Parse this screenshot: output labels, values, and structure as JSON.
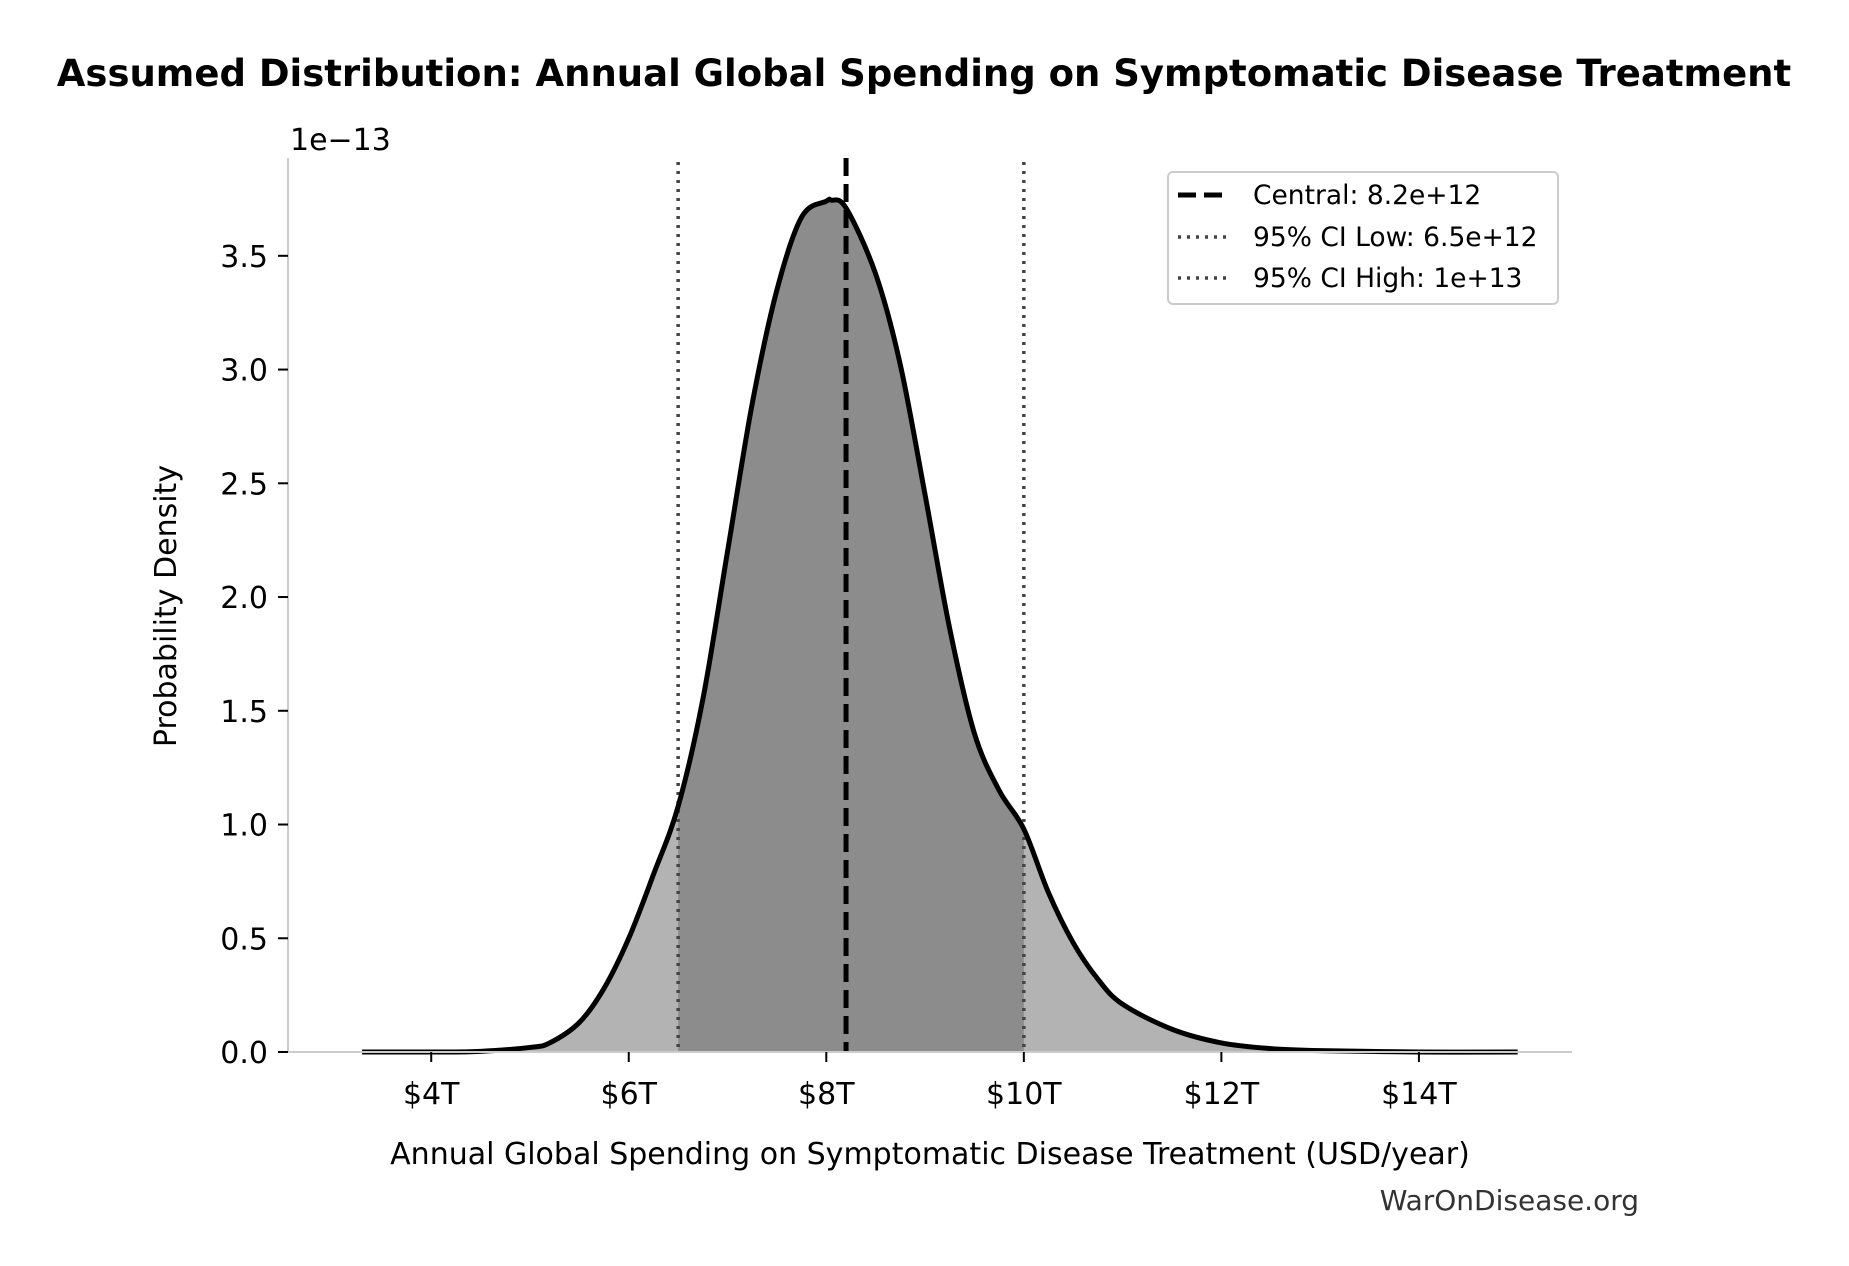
{
  "chart_data": {
    "type": "area",
    "title": "Assumed Distribution: Annual Global Spending on Symptomatic Disease Treatment",
    "xlabel": "Annual Global Spending on Symptomatic Disease Treatment (USD/year)",
    "ylabel": "Probability Density",
    "y_offset_label": "1e−13",
    "watermark": "WarOnDisease.org",
    "xlim": [
      2550000000000.0,
      15550000000000.0
    ],
    "ylim": [
      0,
      3.93
    ],
    "x_ticks": [
      {
        "value": 4000000000000.0,
        "label": "$4T"
      },
      {
        "value": 6000000000000.0,
        "label": "$6T"
      },
      {
        "value": 8000000000000.0,
        "label": "$8T"
      },
      {
        "value": 10000000000000.0,
        "label": "$10T"
      },
      {
        "value": 12000000000000.0,
        "label": "$12T"
      },
      {
        "value": 14000000000000.0,
        "label": "$14T"
      }
    ],
    "y_ticks": [
      {
        "value": 0.0,
        "label": "0.0"
      },
      {
        "value": 0.5,
        "label": "0.5"
      },
      {
        "value": 1.0,
        "label": "1.0"
      },
      {
        "value": 1.5,
        "label": "1.5"
      },
      {
        "value": 2.0,
        "label": "2.0"
      },
      {
        "value": 2.5,
        "label": "2.5"
      },
      {
        "value": 3.0,
        "label": "3.0"
      },
      {
        "value": 3.5,
        "label": "3.5"
      }
    ],
    "grid": false,
    "legend_position": "top-right",
    "series": [
      {
        "name": "",
        "x": [
          3300000000000.0,
          4000000000000.0,
          4500000000000.0,
          5000000000000.0,
          5200000000000.0,
          5500000000000.0,
          5750000000000.0,
          6000000000000.0,
          6250000000000.0,
          6500000000000.0,
          6750000000000.0,
          7000000000000.0,
          7250000000000.0,
          7500000000000.0,
          7750000000000.0,
          8000000000000.0,
          8050000000000.0,
          8200000000000.0,
          8500000000000.0,
          8750000000000.0,
          9000000000000.0,
          9250000000000.0,
          9500000000000.0,
          9750000000000.0,
          10000000000000.0,
          10250000000000.0,
          10500000000000.0,
          10750000000000.0,
          11000000000000.0,
          11500000000000.0,
          12000000000000.0,
          12500000000000.0,
          13000000000000.0,
          14000000000000.0,
          15000000000000.0
        ],
        "y": [
          0.0,
          0.0,
          0.003,
          0.02,
          0.04,
          0.13,
          0.28,
          0.5,
          0.78,
          1.08,
          1.55,
          2.2,
          2.85,
          3.35,
          3.67,
          3.74,
          3.745,
          3.71,
          3.42,
          3.02,
          2.45,
          1.86,
          1.4,
          1.15,
          0.98,
          0.7,
          0.48,
          0.32,
          0.21,
          0.1,
          0.04,
          0.015,
          0.006,
          0.0,
          0.0
        ]
      }
    ],
    "shaded_region": {
      "from": 6500000000000.0,
      "to": 10000000000000.0
    },
    "reference_lines": [
      {
        "label": "Central: 8.2e+12",
        "value": 8200000000000.0,
        "style": "dashed",
        "color": "#000000"
      },
      {
        "label": "95% CI Low: 6.5e+12",
        "value": 6500000000000.0,
        "style": "dotted",
        "color": "#444444"
      },
      {
        "label": "95% CI High: 1e+13",
        "value": 10000000000000.0,
        "style": "dotted",
        "color": "#444444"
      }
    ],
    "colors": {
      "curve": "#000000",
      "fill_outer": "#b3b3b3",
      "fill_inner": "#8c8c8c",
      "axis": "#cccccc"
    }
  }
}
